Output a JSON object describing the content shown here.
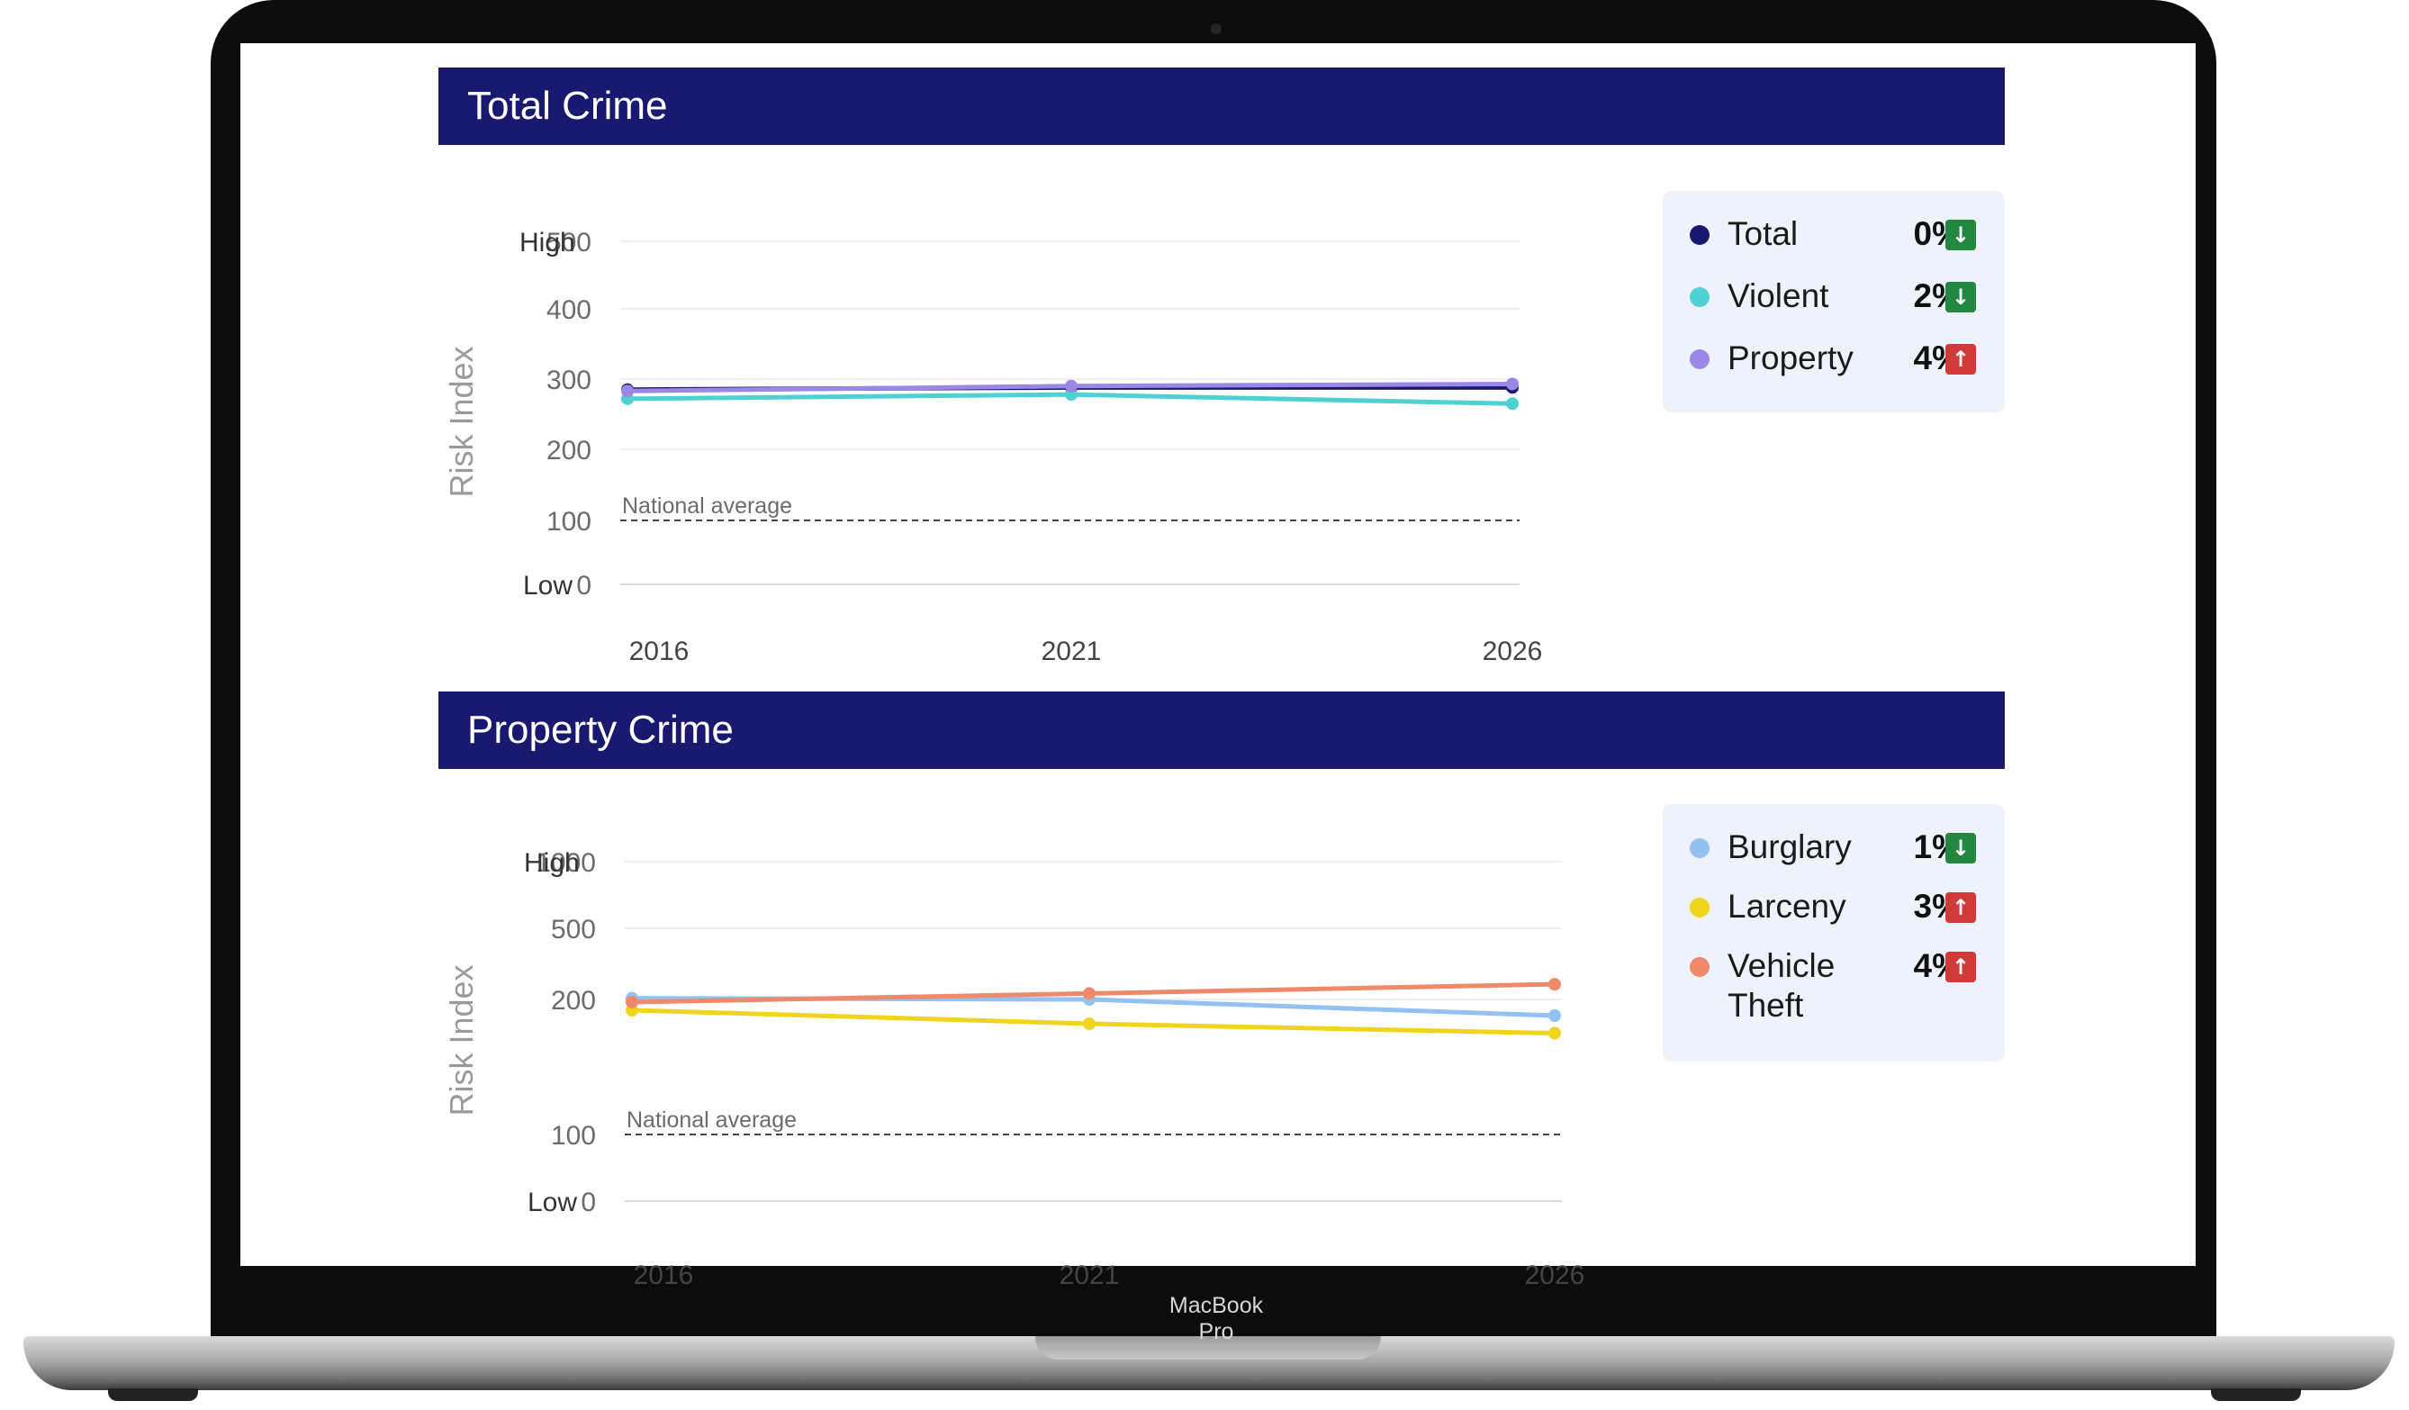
{
  "device": {
    "label": "MacBook Pro"
  },
  "colors": {
    "header_bg": "#191970",
    "total": "#191970",
    "violent": "#4fd1d1",
    "property": "#9b87e8",
    "burglary": "#93c1f2",
    "larceny": "#f0d51e",
    "vehicle_theft": "#ee8a6a",
    "down_badge": "#22883f",
    "up_badge": "#d23a3a"
  },
  "sections": [
    {
      "title": "Total Crime",
      "legend": [
        {
          "name": "Total",
          "pct": "0%",
          "direction": "down",
          "arrow_icon": "arrow-down-icon",
          "color": "#191970"
        },
        {
          "name": "Violent",
          "pct": "2%",
          "direction": "down",
          "arrow_icon": "arrow-down-icon",
          "color": "#4fd1d1"
        },
        {
          "name": "Property",
          "pct": "4%",
          "direction": "up",
          "arrow_icon": "arrow-up-icon",
          "color": "#9b87e8"
        }
      ]
    },
    {
      "title": "Property Crime",
      "legend": [
        {
          "name": "Burglary",
          "pct": "1%",
          "direction": "down",
          "arrow_icon": "arrow-down-icon",
          "color": "#93c1f2"
        },
        {
          "name": "Larceny",
          "pct": "3%",
          "direction": "up",
          "arrow_icon": "arrow-up-icon",
          "color": "#f0d51e"
        },
        {
          "name": "Vehicle Theft",
          "pct": "4%",
          "direction": "up",
          "arrow_icon": "arrow-up-icon",
          "color": "#ee8a6a"
        }
      ]
    }
  ],
  "chart_data": [
    {
      "type": "line",
      "title": "Total Crime",
      "ylabel": "Risk Index",
      "x": [
        2016,
        2021,
        2026
      ],
      "ylim": [
        0,
        500
      ],
      "y_scale": "linear",
      "y_ticks": [
        0,
        100,
        200,
        300,
        400,
        500
      ],
      "y_tick_labels": [
        "0",
        "100",
        "200",
        "300",
        "400",
        "500"
      ],
      "y_band_labels": {
        "high": "High",
        "low": "Low"
      },
      "grid": true,
      "legend_position": "right",
      "reference_line": {
        "label": "National average",
        "value": 100
      },
      "series": [
        {
          "name": "Total",
          "values": [
            285,
            288,
            288
          ]
        },
        {
          "name": "Violent",
          "values": [
            272,
            278,
            265
          ]
        },
        {
          "name": "Property",
          "values": [
            283,
            290,
            293
          ]
        }
      ]
    },
    {
      "type": "line",
      "title": "Property Crime",
      "ylabel": "Risk Index",
      "x": [
        2016,
        2021,
        2026
      ],
      "ylim": [
        0,
        1000
      ],
      "y_scale": "nonlinear",
      "y_ticks": [
        0,
        100,
        200,
        500,
        1000
      ],
      "y_tick_labels": [
        "0",
        "100",
        "200",
        "500",
        "1000"
      ],
      "y_band_labels": {
        "high": "High",
        "low": "Low"
      },
      "grid": true,
      "legend_position": "right",
      "reference_line": {
        "label": "National average",
        "value": 100
      },
      "series": [
        {
          "name": "Burglary",
          "values": [
            205,
            200,
            188
          ]
        },
        {
          "name": "Larceny",
          "values": [
            192,
            182,
            175
          ]
        },
        {
          "name": "Vehicle Theft",
          "values": [
            198,
            225,
            264
          ]
        }
      ]
    }
  ]
}
